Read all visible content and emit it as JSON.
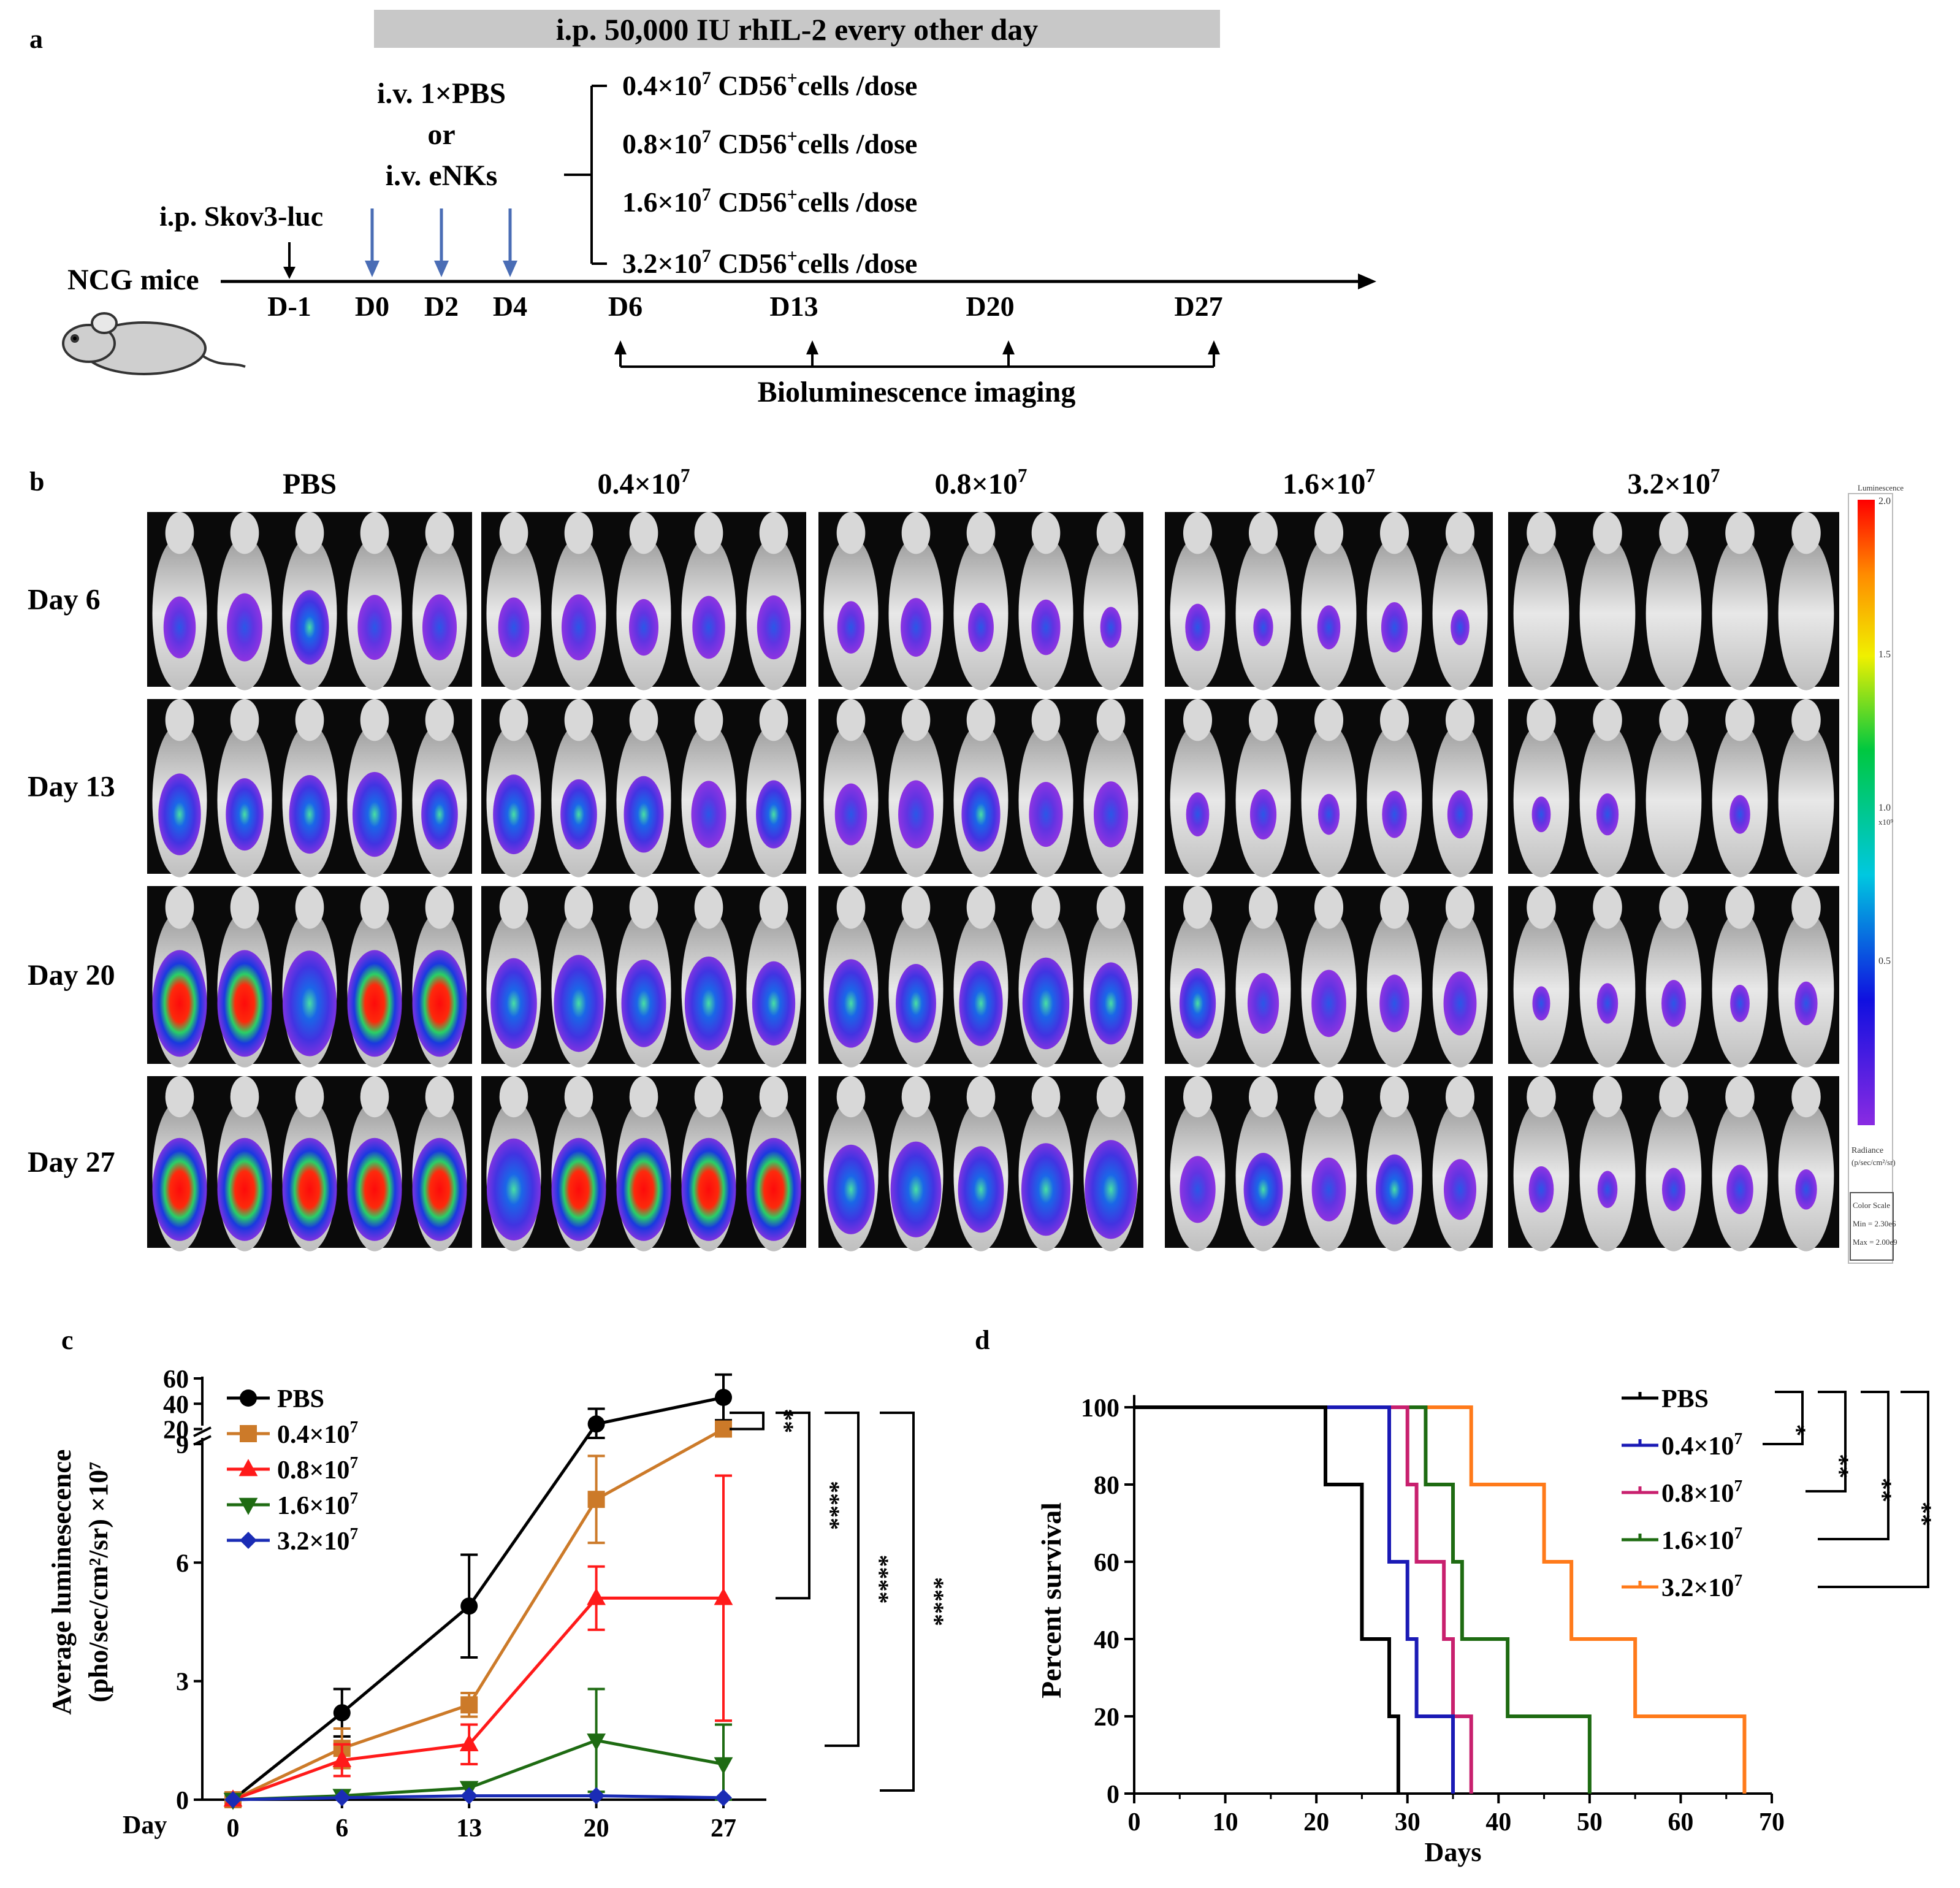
{
  "panel_labels": {
    "a": "a",
    "b": "b",
    "c": "c",
    "d": "d"
  },
  "panel_a": {
    "banner": "i.p. 50,000 IU rhIL-2 every other day",
    "mice_label": "NCG mice",
    "inoculation": "i.p. Skov3-luc",
    "treatment": [
      "i.v. 1×PBS",
      "or",
      "i.v. eNKs"
    ],
    "days": [
      "D-1",
      "D0",
      "D2",
      "D4",
      "D6",
      "D13",
      "D20",
      "D27"
    ],
    "doses": [
      {
        "base": "0.4×10",
        "exp": "7",
        "cells": "CD56",
        "sup": "+",
        "suffix": "cells /dose"
      },
      {
        "base": "0.8×10",
        "exp": "7",
        "cells": "CD56",
        "sup": "+",
        "suffix": "cells /dose"
      },
      {
        "base": "1.6×10",
        "exp": "7",
        "cells": "CD56",
        "sup": "+",
        "suffix": "cells /dose"
      },
      {
        "base": "3.2×10",
        "exp": "7",
        "cells": "CD56",
        "sup": "+",
        "suffix": "cells /dose"
      }
    ],
    "imaging_label": "Bioluminescence imaging"
  },
  "panel_b": {
    "groups": [
      {
        "base": "PBS",
        "exp": ""
      },
      {
        "base": "0.4×10",
        "exp": "7"
      },
      {
        "base": "0.8×10",
        "exp": "7"
      },
      {
        "base": "1.6×10",
        "exp": "7"
      },
      {
        "base": "3.2×10",
        "exp": "7"
      }
    ],
    "rows": [
      "Day 6",
      "Day 13",
      "Day 20",
      "Day 27"
    ],
    "colorbar": {
      "title": "Luminescence",
      "ticks": [
        "2.0",
        "1.5",
        "1.0",
        "0.5"
      ],
      "tick_unit": "x10⁹",
      "radiance": "Radiance",
      "radiance_unit": "(p/sec/cm²/sr)",
      "scale": [
        "Color Scale",
        "Min = 2.30e6",
        "Max = 2.00e9"
      ]
    },
    "signal_matrix": [
      [
        0.35,
        0.3,
        0.2,
        0.12,
        0.0
      ],
      [
        0.45,
        0.4,
        0.35,
        0.15,
        0.04
      ],
      [
        0.75,
        0.55,
        0.5,
        0.3,
        0.08
      ],
      [
        0.95,
        0.75,
        0.6,
        0.35,
        0.12
      ]
    ]
  },
  "chart_data": [
    {
      "type": "line",
      "title": "",
      "xlabel": "Day",
      "ylabel_line1": "Average luminesecence",
      "ylabel_line2": "(pho/sec/cm²/sr) ×10⁷",
      "x": [
        0,
        6,
        13,
        20,
        27
      ],
      "x_tick_labels": [
        "0",
        "6",
        "13",
        "20",
        "27"
      ],
      "y_ticks_lower": [
        "0",
        "3",
        "6",
        "9"
      ],
      "y_ticks_upper": [
        "20",
        "40",
        "60"
      ],
      "ylim_lower": [
        0,
        9
      ],
      "ylim_upper": [
        10,
        60
      ],
      "series": [
        {
          "name": "PBS",
          "exp": "",
          "color": "#000000",
          "marker": "circle",
          "values": [
            0,
            2.2,
            4.9,
            24,
            45
          ],
          "errors": [
            0,
            0.6,
            1.3,
            12,
            18
          ]
        },
        {
          "name": "0.4×10",
          "exp": "7",
          "color": "#CC7A29",
          "marker": "square",
          "values": [
            0,
            1.3,
            2.4,
            7.6,
            20
          ],
          "errors": [
            0,
            0.5,
            0.3,
            1.1,
            5
          ]
        },
        {
          "name": "0.8×10",
          "exp": "7",
          "color": "#FF1A1A",
          "marker": "triangle-up",
          "values": [
            0,
            1.0,
            1.4,
            5.1,
            5.1
          ],
          "errors": [
            0,
            0.4,
            0.5,
            0.8,
            3.1
          ]
        },
        {
          "name": "1.6×10",
          "exp": "7",
          "color": "#1E6B12",
          "marker": "triangle-down",
          "values": [
            0,
            0.1,
            0.3,
            1.5,
            0.9
          ],
          "errors": [
            0,
            0,
            0,
            1.3,
            1.0
          ]
        },
        {
          "name": "3.2×10",
          "exp": "7",
          "color": "#1A2CB5",
          "marker": "diamond",
          "values": [
            0,
            0.05,
            0.1,
            0.1,
            0.05
          ],
          "errors": [
            0,
            0,
            0,
            0,
            0
          ]
        }
      ],
      "significance": [
        "**",
        "****",
        "****",
        "****"
      ],
      "legend": "top-left"
    },
    {
      "type": "line",
      "title": "",
      "xlabel": "Days",
      "ylabel": "Percent survival",
      "xlim": [
        0,
        70
      ],
      "ylim": [
        0,
        100
      ],
      "x_ticks": [
        "0",
        "10",
        "20",
        "30",
        "40",
        "50",
        "60",
        "70"
      ],
      "y_ticks": [
        "0",
        "20",
        "40",
        "60",
        "80",
        "100"
      ],
      "series": [
        {
          "name": "PBS",
          "exp": "",
          "color": "#000000",
          "steps": [
            [
              0,
              100
            ],
            [
              21,
              80
            ],
            [
              25,
              40
            ],
            [
              28,
              20
            ],
            [
              29,
              0
            ]
          ]
        },
        {
          "name": "0.4×10",
          "exp": "7",
          "color": "#1A1AB5",
          "steps": [
            [
              0,
              100
            ],
            [
              28,
              60
            ],
            [
              30,
              40
            ],
            [
              31,
              20
            ],
            [
              35,
              0
            ]
          ]
        },
        {
          "name": "0.8×10",
          "exp": "7",
          "color": "#C8206E",
          "steps": [
            [
              0,
              100
            ],
            [
              30,
              80
            ],
            [
              31,
              60
            ],
            [
              34,
              40
            ],
            [
              35,
              20
            ],
            [
              37,
              0
            ]
          ]
        },
        {
          "name": "1.6×10",
          "exp": "7",
          "color": "#1E6B12",
          "steps": [
            [
              0,
              100
            ],
            [
              32,
              80
            ],
            [
              35,
              60
            ],
            [
              36,
              40
            ],
            [
              41,
              20
            ],
            [
              50,
              0
            ]
          ]
        },
        {
          "name": "3.2×10",
          "exp": "7",
          "color": "#FF7A1A",
          "steps": [
            [
              0,
              100
            ],
            [
              37,
              80
            ],
            [
              45,
              60
            ],
            [
              48,
              40
            ],
            [
              55,
              20
            ],
            [
              67,
              0
            ]
          ]
        }
      ],
      "significance": [
        "*",
        "**",
        "**",
        "**"
      ],
      "legend": "top-right"
    }
  ]
}
